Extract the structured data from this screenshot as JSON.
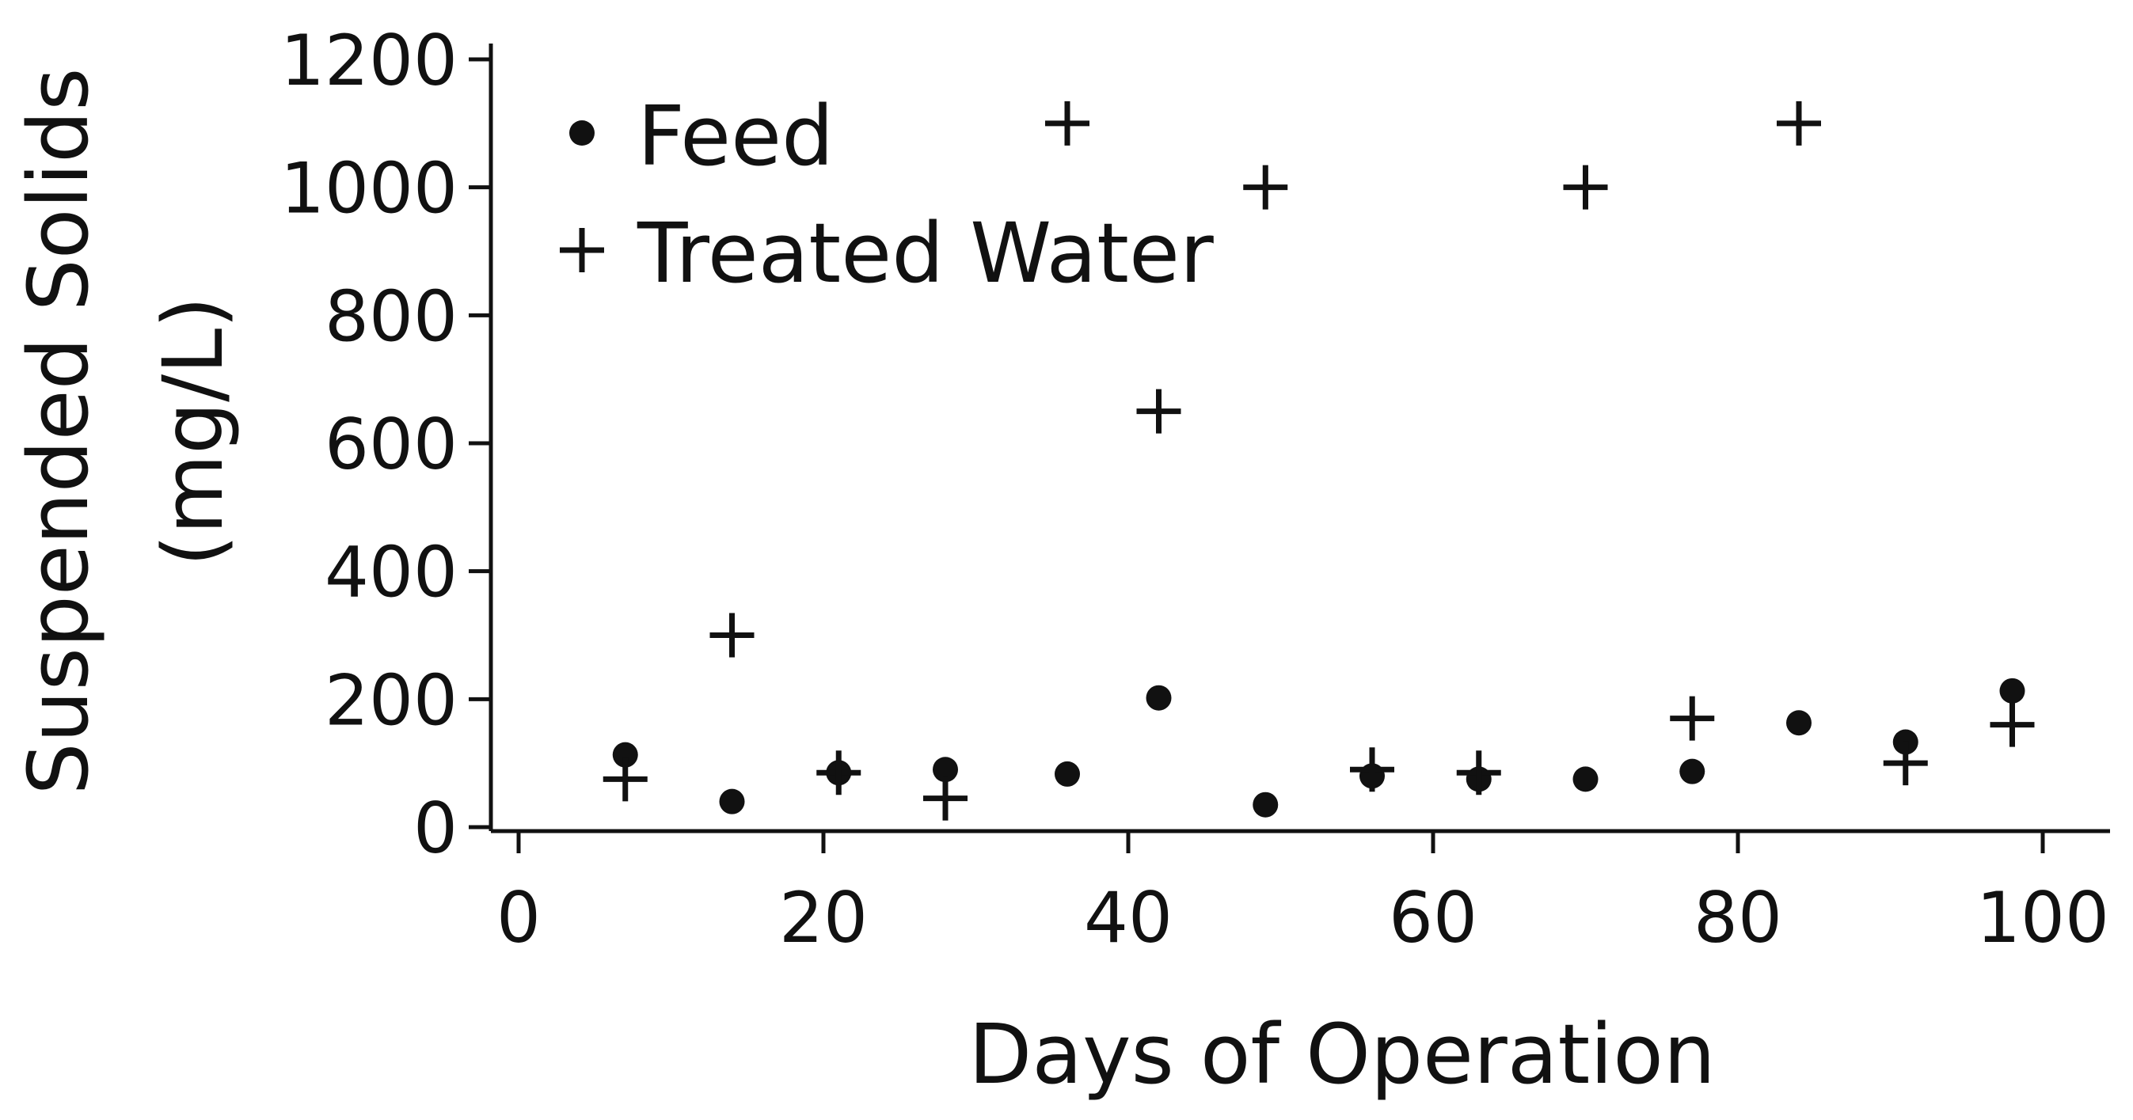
{
  "chart_data": {
    "type": "scatter",
    "title": "",
    "xlabel": "Days of Operation",
    "ylabel": "Suspended Solids",
    "ylabel_units": "(mg/L)",
    "xlim": [
      -4,
      105
    ],
    "ylim": [
      0,
      1200
    ],
    "xticks": [
      0,
      20,
      40,
      60,
      80,
      100
    ],
    "yticks": [
      0,
      200,
      400,
      600,
      800,
      1000,
      1200
    ],
    "xtick_labels": [
      "0",
      "20",
      "40",
      "60",
      "80",
      "100"
    ],
    "ytick_labels": [
      "0",
      "200",
      "400",
      "600",
      "800",
      "1000",
      "1200"
    ],
    "grid": false,
    "legend_position": "top-left",
    "series": [
      {
        "name": "Feed",
        "marker": "dot",
        "x": [
          7,
          14,
          21,
          28,
          36,
          42,
          49,
          56,
          63,
          70,
          77,
          84,
          91,
          98
        ],
        "y": [
          113,
          40,
          85,
          90,
          83,
          202,
          35,
          80,
          75,
          75,
          87,
          163,
          133,
          213
        ]
      },
      {
        "name": "Treated Water",
        "marker": "plus",
        "x": [
          7,
          14,
          21,
          28,
          36,
          42,
          49,
          56,
          63,
          70,
          77,
          84,
          91,
          98
        ],
        "y": [
          75,
          300,
          85,
          45,
          1100,
          650,
          1000,
          90,
          85,
          1000,
          170,
          1100,
          100,
          160
        ]
      }
    ],
    "colors": {
      "marker": "#111111",
      "axis": "#111111",
      "background": "#ffffff"
    }
  }
}
